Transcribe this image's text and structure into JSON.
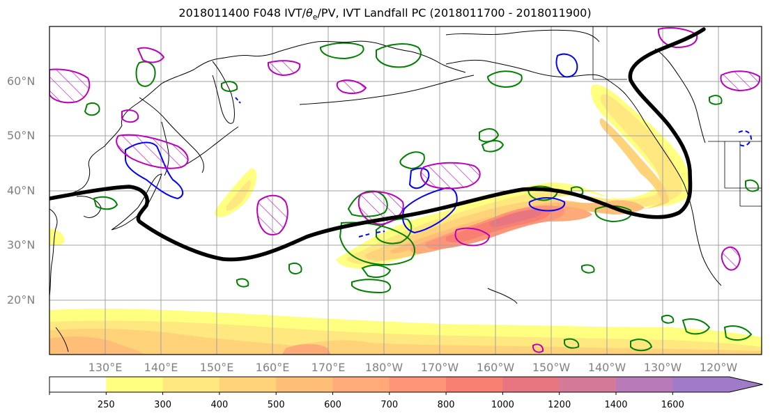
{
  "title": {
    "prefix": "2018011400 F048 IVT/",
    "theta": "θ",
    "theta_sub": "e",
    "suffix": "/PV, IVT Landfall PC (2018011700 - 2018011900)"
  },
  "map": {
    "projection": "equirectangular",
    "extent_lon": [
      118,
      246
    ],
    "extent_lat": [
      10,
      70
    ],
    "lat_gridlines": [
      20,
      30,
      40,
      50,
      60
    ],
    "lon_gridlines": [
      130,
      140,
      150,
      160,
      170,
      180,
      190,
      200,
      210,
      220,
      230,
      240
    ],
    "lat_labels": [
      "20°N",
      "30°N",
      "40°N",
      "50°N",
      "60°N"
    ],
    "lon_labels": [
      "130°E",
      "140°E",
      "150°E",
      "160°E",
      "170°E",
      "180°W",
      "170°W",
      "160°W",
      "150°W",
      "140°W",
      "130°W",
      "120°W"
    ],
    "grid_color": "#a0a0a0",
    "contour_colors": {
      "pc_line": "#000000",
      "theta_e": "#008000",
      "pv_positive": "#0000ff",
      "pv_negative_hatched": "#bb00bb"
    }
  },
  "colorbar": {
    "levels": [
      250,
      300,
      400,
      500,
      600,
      700,
      800,
      1000,
      1200,
      1400,
      1600
    ],
    "tick_labels": [
      "250",
      "300",
      "400",
      "500",
      "600",
      "700",
      "800",
      "1000",
      "1200",
      "1400",
      "1600"
    ],
    "colors": [
      "#ffffff",
      "#ffff80",
      "#ffe880",
      "#ffd37a",
      "#ffbe78",
      "#ffaa78",
      "#ff9578",
      "#f88072",
      "#e87680",
      "#d27a98",
      "#b87ab8",
      "#a07bc8"
    ],
    "extend": "max"
  }
}
